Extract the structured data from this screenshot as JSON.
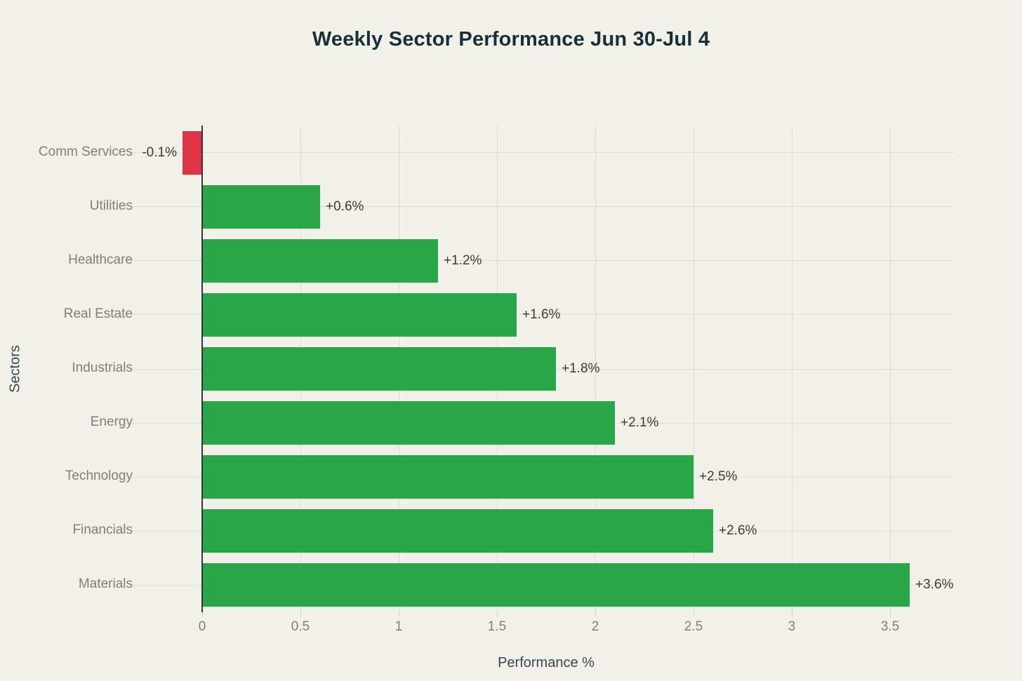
{
  "chart_data": {
    "type": "bar",
    "orientation": "horizontal",
    "title": "Weekly Sector Performance Jun 30-Jul 4",
    "xlabel": "Performance %",
    "ylabel": "Sectors",
    "categories": [
      "Comm Services",
      "Utilities",
      "Healthcare",
      "Real Estate",
      "Industrials",
      "Energy",
      "Technology",
      "Financials",
      "Materials"
    ],
    "values": [
      -0.1,
      0.6,
      1.2,
      1.6,
      1.8,
      2.1,
      2.5,
      2.6,
      3.6
    ],
    "bar_labels": [
      "-0.1%",
      "+0.6%",
      "+1.2%",
      "+1.6%",
      "+1.8%",
      "+2.1%",
      "+2.5%",
      "+2.6%",
      "+3.6%"
    ],
    "xticks": [
      0,
      0.5,
      1,
      1.5,
      2,
      2.5,
      3,
      3.5
    ],
    "xtick_labels": [
      "0",
      "0.5",
      "1",
      "1.5",
      "2",
      "2.5",
      "3",
      "3.5"
    ],
    "xlim": [
      -0.325,
      3.825
    ],
    "grid": true,
    "legend_position": "none",
    "colors": {
      "positive_bar": "#29a648",
      "negative_bar": "#dc3545",
      "background": "#f1f1ea",
      "gridline": "#dcdcd4",
      "zeroline": "#2b3a40",
      "title_text": "#16303a",
      "axis_title_text": "#37474f",
      "tick_text": "#7e7e7e",
      "bar_label_text": "#3b3b3b"
    }
  }
}
